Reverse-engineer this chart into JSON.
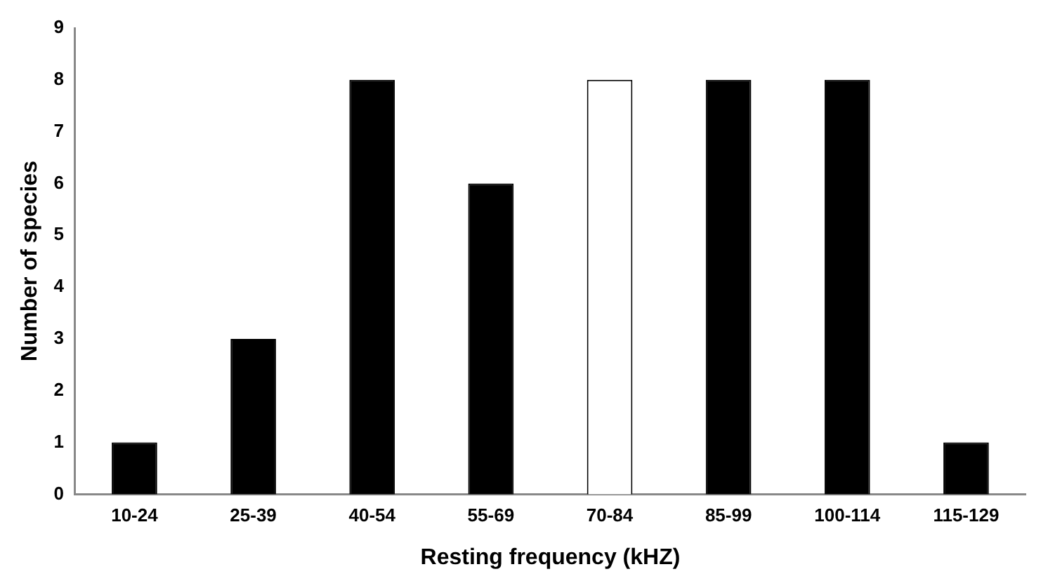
{
  "chart_data": {
    "type": "bar",
    "xlabel": "Resting frequency (kHZ)",
    "ylabel": "Number of species",
    "categories": [
      "10-24",
      "25-39",
      "40-54",
      "55-69",
      "70-84",
      "85-99",
      "100-114",
      "115-129"
    ],
    "values": [
      1,
      3,
      8,
      6,
      8,
      8,
      8,
      1
    ],
    "colors": [
      "#000000",
      "#000000",
      "#000000",
      "#000000",
      "#ffffff",
      "#000000",
      "#000000",
      "#000000"
    ],
    "ylim": [
      0,
      9
    ],
    "yticks": [
      0,
      1,
      2,
      3,
      4,
      5,
      6,
      7,
      8,
      9
    ],
    "grid": false,
    "legend": false
  }
}
